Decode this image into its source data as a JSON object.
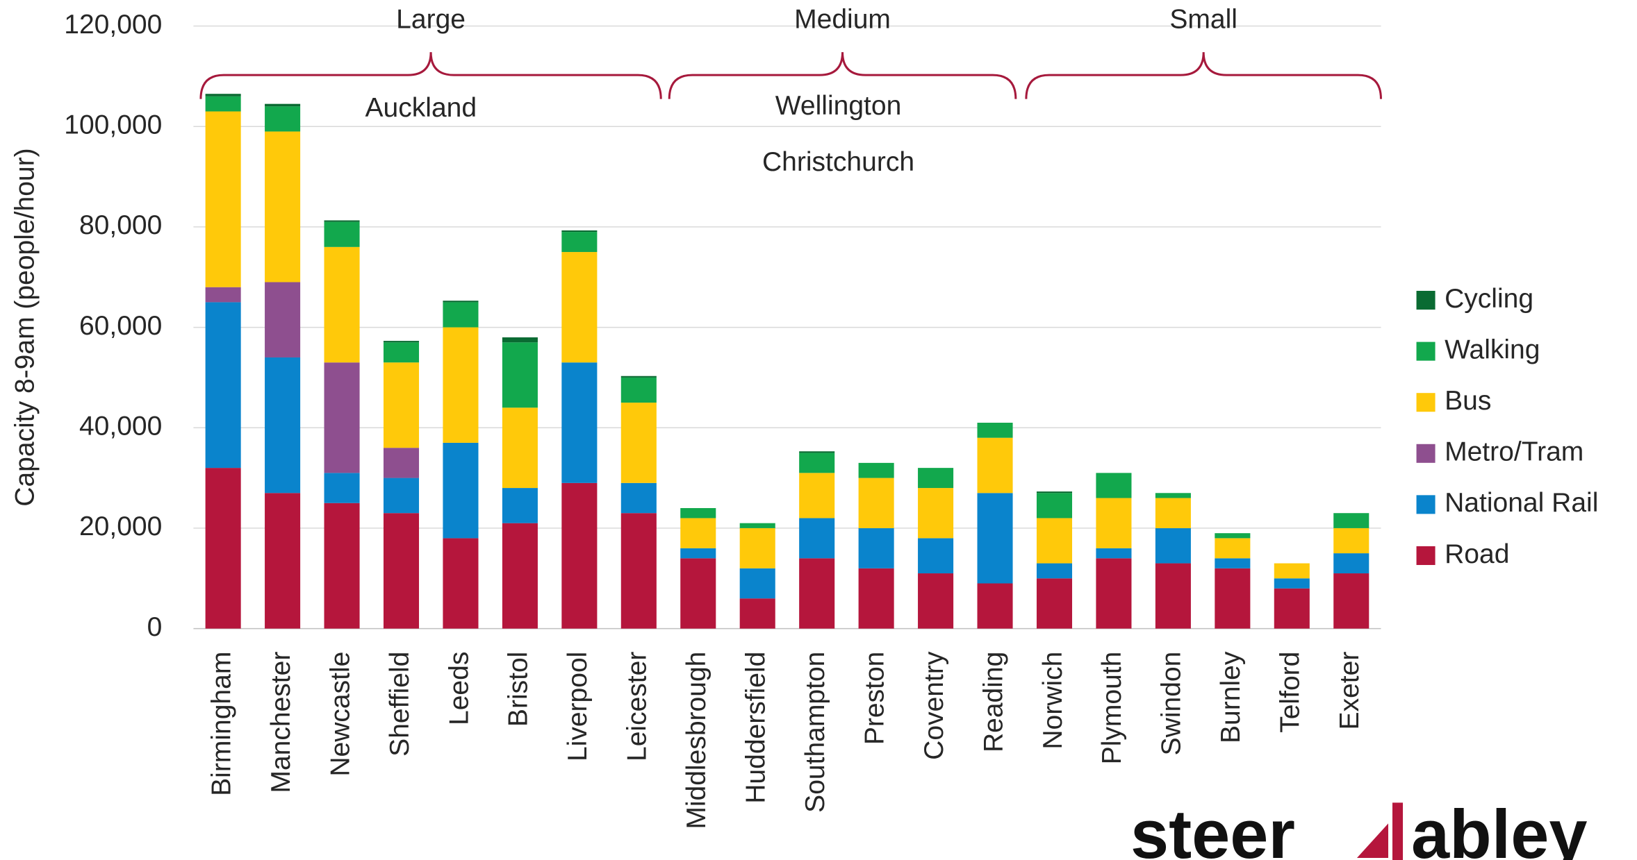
{
  "chart_data": {
    "type": "stacked_bar",
    "y_label": "Capacity 8-9am (people/hour)",
    "categories": [
      "Birmingham",
      "Manchester",
      "Newcastle",
      "Sheffield",
      "Leeds",
      "Bristol",
      "Liverpool",
      "Leicester",
      "Middlesbrough",
      "Huddersfield",
      "Southampton",
      "Preston",
      "Coventry",
      "Reading",
      "Norwich",
      "Plymouth",
      "Swindon",
      "Burnley",
      "Telford",
      "Exeter"
    ],
    "series": [
      {
        "name": "Road",
        "color": "#b5163c",
        "values": [
          32000,
          27000,
          25000,
          23000,
          18000,
          21000,
          29000,
          23000,
          14000,
          6000,
          14000,
          12000,
          11000,
          9000,
          10000,
          14000,
          13000,
          12000,
          8000,
          11000
        ]
      },
      {
        "name": "National Rail",
        "color": "#0a84cc",
        "values": [
          33000,
          27000,
          6000,
          7000,
          19000,
          7000,
          24000,
          6000,
          2000,
          6000,
          8000,
          8000,
          7000,
          18000,
          3000,
          2000,
          7000,
          2000,
          2000,
          4000
        ]
      },
      {
        "name": "Metro/Tram",
        "color": "#8e4f8f",
        "values": [
          3000,
          15000,
          22000,
          6000,
          0,
          0,
          0,
          0,
          0,
          0,
          0,
          0,
          0,
          0,
          0,
          0,
          0,
          0,
          0,
          0
        ]
      },
      {
        "name": "Bus",
        "color": "#ffc90a",
        "values": [
          35000,
          30000,
          23000,
          17000,
          23000,
          16000,
          22000,
          16000,
          6000,
          8000,
          9000,
          10000,
          10000,
          11000,
          9000,
          10000,
          6000,
          4000,
          3000,
          5000
        ]
      },
      {
        "name": "Walking",
        "color": "#12a84d",
        "values": [
          3000,
          5000,
          5000,
          4000,
          5000,
          13000,
          4000,
          5000,
          2000,
          1000,
          4000,
          3000,
          4000,
          3000,
          5000,
          5000,
          1000,
          1000,
          0,
          3000
        ]
      },
      {
        "name": "Cycling",
        "color": "#0a6b32",
        "values": [
          500,
          500,
          300,
          300,
          300,
          1000,
          300,
          300,
          0,
          0,
          300,
          0,
          0,
          0,
          300,
          0,
          0,
          0,
          0,
          0
        ]
      }
    ],
    "ylim": [
      0,
      120000
    ],
    "yticks": [
      0,
      {
        "value": 20000,
        "label": "20,000"
      },
      {
        "value": 40000,
        "label": "40,000"
      },
      {
        "value": 60000,
        "label": "60,000"
      },
      {
        "value": 80000,
        "label": "80,000"
      },
      {
        "value": 100000,
        "label": "100,000"
      },
      {
        "value": 120000,
        "label": "120,000"
      }
    ],
    "grid": true,
    "legend": "right",
    "groups": [
      "Large",
      "Medium",
      "Small"
    ],
    "annotations": [
      "Auckland",
      "Wellington",
      "Christchurch"
    ]
  },
  "logo": {
    "left": "steer",
    "right": "abley"
  }
}
